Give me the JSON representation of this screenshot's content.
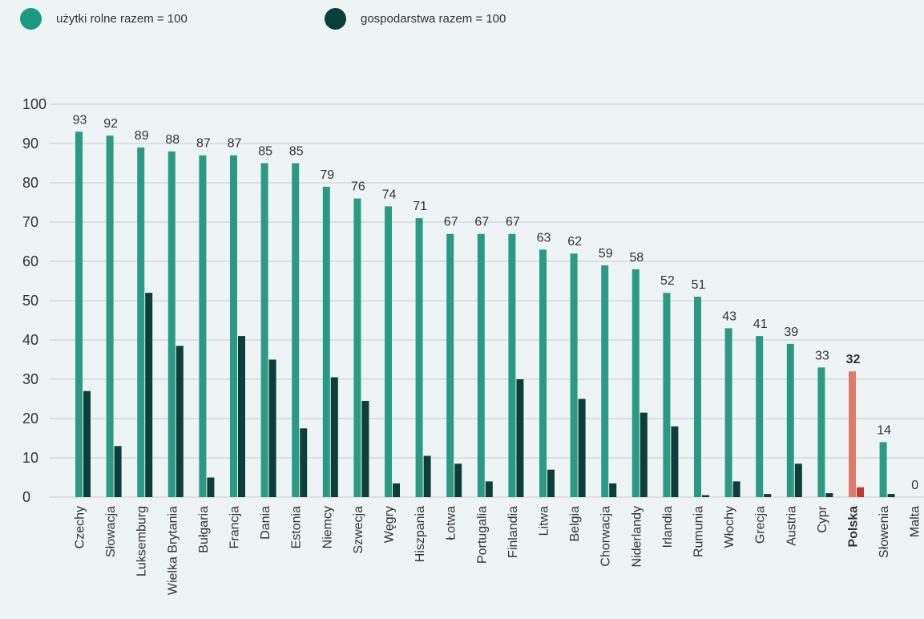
{
  "legend": {
    "items": [
      {
        "label": "użytki rolne razem = 100",
        "color": "#1a9a80"
      },
      {
        "label": "gospodarstwa razem = 100",
        "color": "#0b3f3a"
      }
    ]
  },
  "colors": {
    "series1": "#2a9a82",
    "series2": "#0d3f3a",
    "highlight1": "#e07b6c",
    "highlight2": "#c0392b",
    "grid": "#c8cfd0",
    "text": "#333333"
  },
  "chart_data": {
    "type": "bar",
    "categories": [
      "Czechy",
      "Słowacja",
      "Luksemburg",
      "Wielka Brytania",
      "Bułgaria",
      "Francja",
      "Dania",
      "Estonia",
      "Niemcy",
      "Szwecja",
      "Węgry",
      "Hiszpania",
      "Łotwa",
      "Portugalia",
      "Finlandia",
      "Litwa",
      "Belgia",
      "Chorwacja",
      "Niderlandy",
      "Irlandia",
      "Rumunia",
      "Włochy",
      "Grecja",
      "Austria",
      "Cypr",
      "Polska",
      "Słowenia",
      "Malta"
    ],
    "series": [
      {
        "name": "użytki rolne razem = 100",
        "values": [
          93,
          92,
          89,
          88,
          87,
          87,
          85,
          85,
          79,
          76,
          74,
          71,
          67,
          67,
          67,
          63,
          62,
          59,
          58,
          52,
          51,
          43,
          41,
          39,
          33,
          32,
          14,
          0
        ],
        "labels": [
          "93",
          "92",
          "89",
          "88",
          "87",
          "87",
          "85",
          "85",
          "79",
          "76",
          "74",
          "71",
          "67",
          "67",
          "67",
          "63",
          "62",
          "59",
          "58",
          "52",
          "51",
          "43",
          "41",
          "39",
          "33",
          "32",
          "14",
          "0"
        ]
      },
      {
        "name": "gospodarstwa razem = 100",
        "values": [
          27,
          13,
          52,
          38.5,
          5,
          41,
          35,
          17.5,
          30.5,
          24.5,
          3.5,
          10.5,
          8.5,
          4,
          30,
          7,
          25,
          3.5,
          21.5,
          18,
          0.5,
          4,
          0.8,
          8.5,
          1,
          2.5,
          0.8,
          0
        ]
      }
    ],
    "highlight_category": "Polska",
    "y_ticks": [
      "0",
      "10",
      "20",
      "30",
      "40",
      "50",
      "60",
      "70",
      "80",
      "90",
      "100"
    ],
    "ylim": [
      0,
      100
    ],
    "grid": true,
    "legend_position": "top-left"
  }
}
